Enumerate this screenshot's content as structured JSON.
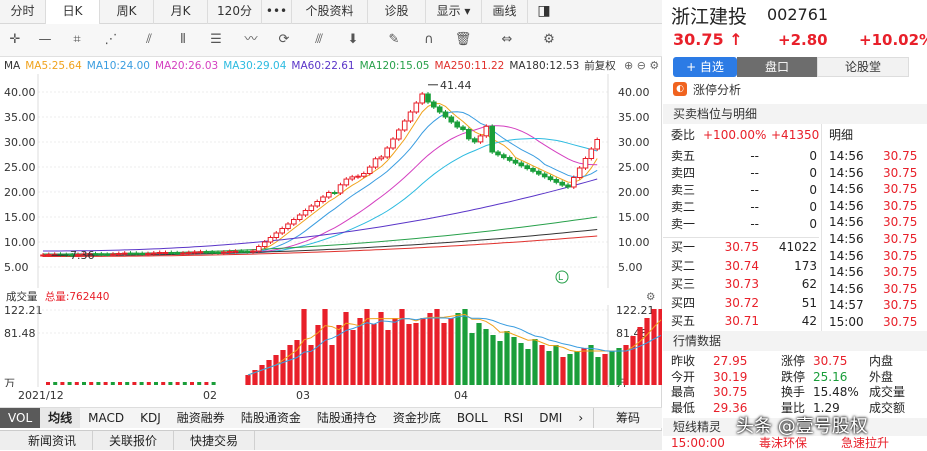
{
  "tabs": [
    "分时",
    "日K",
    "周K",
    "月K",
    "120分",
    "•••",
    "个股资料",
    "诊股",
    "显示 ▾",
    "画线"
  ],
  "active_tab": "日K",
  "ma_legend": [
    {
      "label": "MA",
      "color": "#333333"
    },
    {
      "label": "MA5:25.64",
      "color": "#f0a21c"
    },
    {
      "label": "MA10:24.00",
      "color": "#3a9de0"
    },
    {
      "label": "MA20:26.03",
      "color": "#d43fc0"
    },
    {
      "label": "MA30:29.04",
      "color": "#2dbbe0"
    },
    {
      "label": "MA60:22.61",
      "color": "#5a35c8"
    },
    {
      "label": "MA120:15.05",
      "color": "#27a04a"
    },
    {
      "label": "MA250:11.22",
      "color": "#e0302c"
    },
    {
      "label": "MA180:12.53",
      "color": "#333333"
    },
    {
      "label": "前复权",
      "color": "#333333"
    }
  ],
  "price_axis": [
    "40.00",
    "35.00",
    "30.00",
    "25.00",
    "20.00",
    "15.00",
    "10.00",
    "5.00"
  ],
  "annotations": {
    "high": "41.44",
    "low": "7.36"
  },
  "volume": {
    "label": "成交量",
    "total": "总量:762440",
    "top": "122.21",
    "mid": "81.48",
    "unit": "万"
  },
  "date_axis": [
    "2021/12",
    "02",
    "03",
    "04"
  ],
  "bottom_tabs": [
    "VOL",
    "均线",
    "MACD",
    "KDJ",
    "融资融券",
    "陆股通资金",
    "陆股通持仓",
    "资金抄底",
    "BOLL",
    "RSI",
    "DMI",
    "›",
    "筹码"
  ],
  "bottom_bar": [
    "新闻资讯",
    "关联报价",
    "快捷交易"
  ],
  "stock": {
    "name": "浙江建投",
    "code": "002761",
    "price": "30.75",
    "arrow": "↑",
    "change": "+2.80",
    "pct": "+10.02%",
    "add_watch": "+ 自选",
    "panel_tab": "盘口",
    "forum_tab": "论股堂",
    "limit_analysis": "涨停分析",
    "order_section": "买卖档位与明细",
    "weibi_label": "委比",
    "weibi_pct": "+100.00%",
    "weibi_val": "+41350",
    "detail_label": "明细"
  },
  "asks": [
    {
      "label": "卖五",
      "price": "--",
      "vol": "0"
    },
    {
      "label": "卖四",
      "price": "--",
      "vol": "0"
    },
    {
      "label": "卖三",
      "price": "--",
      "vol": "0"
    },
    {
      "label": "卖二",
      "price": "--",
      "vol": "0"
    },
    {
      "label": "卖一",
      "price": "--",
      "vol": "0"
    }
  ],
  "bids": [
    {
      "label": "买一",
      "price": "30.75",
      "vol": "41022"
    },
    {
      "label": "买二",
      "price": "30.74",
      "vol": "173"
    },
    {
      "label": "买三",
      "price": "30.73",
      "vol": "62"
    },
    {
      "label": "买四",
      "price": "30.72",
      "vol": "51"
    },
    {
      "label": "买五",
      "price": "30.71",
      "vol": "42"
    }
  ],
  "ticks": [
    {
      "time": "14:56",
      "price": "30.75"
    },
    {
      "time": "14:56",
      "price": "30.75"
    },
    {
      "time": "14:56",
      "price": "30.75"
    },
    {
      "time": "14:56",
      "price": "30.75"
    },
    {
      "time": "14:56",
      "price": "30.75"
    },
    {
      "time": "14:56",
      "price": "30.75"
    },
    {
      "time": "14:56",
      "price": "30.75"
    },
    {
      "time": "14:56",
      "price": "30.75"
    },
    {
      "time": "14:56",
      "price": "30.75"
    },
    {
      "time": "14:57",
      "price": "30.75"
    },
    {
      "time": "15:00",
      "price": "30.75"
    }
  ],
  "quote_section": "行情数据",
  "quote": [
    [
      "昨收",
      "27.95",
      "涨停",
      "30.75",
      "内盘",
      ""
    ],
    [
      "今开",
      "30.19",
      "跌停",
      "25.16",
      "外盘",
      ""
    ],
    [
      "最高",
      "30.75",
      "换手",
      "15.48%",
      "成交量",
      ""
    ],
    [
      "最低",
      "29.36",
      "量比",
      "1.29",
      "成交额",
      ""
    ]
  ],
  "short_section": "短线精灵",
  "short_row": {
    "time": "15:00:00",
    "a": "毒沫环保",
    "b": "急速拉升"
  },
  "watermark": "头条 @壹号股权"
}
